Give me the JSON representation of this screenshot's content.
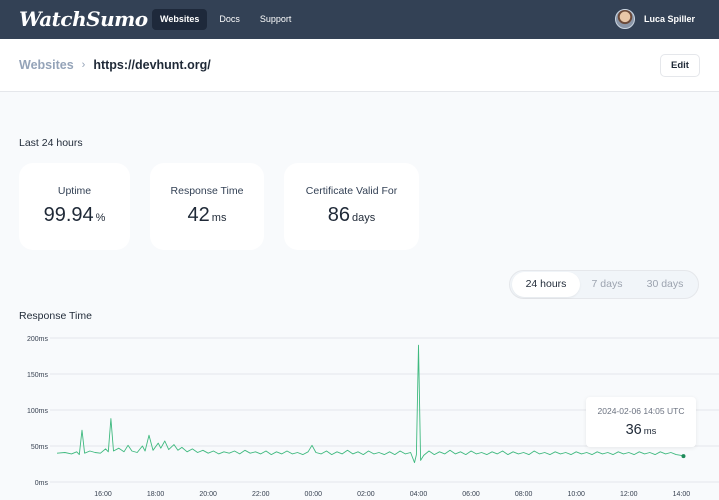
{
  "app": {
    "logo": "WatchSumo"
  },
  "nav": {
    "items": [
      {
        "label": "Websites",
        "active": true
      },
      {
        "label": "Docs"
      },
      {
        "label": "Support"
      }
    ]
  },
  "user": {
    "name": "Luca Spiller",
    "avatar_icon": "user-avatar"
  },
  "breadcrumb": {
    "parent": "Websites",
    "separator": "›",
    "current": "https://devhunt.org/"
  },
  "header": {
    "edit_label": "Edit"
  },
  "summary": {
    "label": "Last 24 hours",
    "uptime": {
      "title": "Uptime",
      "value": "99.94",
      "unit": "%"
    },
    "response_time": {
      "title": "Response Time",
      "value": "42",
      "unit": "ms"
    },
    "certificate": {
      "title": "Certificate Valid For",
      "value": "86",
      "unit": "days"
    }
  },
  "range": {
    "options": [
      "24 hours",
      "7 days",
      "30 days"
    ],
    "selected": "24 hours"
  },
  "chart_title": "Response Time",
  "tooltip": {
    "time": "2024-02-06 14:05 UTC",
    "value": "36",
    "unit": "ms"
  },
  "colors": {
    "topbar": "#334155",
    "accent": "#3fb97f",
    "grid": "#e5e7eb"
  },
  "chart_data": {
    "type": "line",
    "y_ticks": [
      "0ms",
      "50ms",
      "100ms",
      "150ms",
      "200ms"
    ],
    "ylim": [
      0,
      200
    ],
    "x_ticks": [
      "16:00",
      "18:00",
      "20:00",
      "22:00",
      "00:00",
      "02:00",
      "04:00",
      "06:00",
      "08:00",
      "10:00",
      "12:00",
      "14:00"
    ],
    "x_tick_hours": [
      16,
      18,
      20,
      22,
      24,
      26,
      28,
      30,
      32,
      34,
      36,
      38
    ],
    "xlim": [
      14.25,
      38.1
    ],
    "grid": true,
    "series": [
      {
        "points": [
          [
            14.25,
            40
          ],
          [
            14.55,
            41
          ],
          [
            14.8,
            39
          ],
          [
            15.0,
            42
          ],
          [
            15.1,
            38
          ],
          [
            15.2,
            72
          ],
          [
            15.3,
            40
          ],
          [
            15.5,
            43
          ],
          [
            15.7,
            41
          ],
          [
            15.9,
            40
          ],
          [
            16.1,
            46
          ],
          [
            16.2,
            42
          ],
          [
            16.3,
            88
          ],
          [
            16.4,
            43
          ],
          [
            16.6,
            47
          ],
          [
            16.8,
            42
          ],
          [
            16.95,
            51
          ],
          [
            17.1,
            43
          ],
          [
            17.3,
            41
          ],
          [
            17.5,
            50
          ],
          [
            17.6,
            43
          ],
          [
            17.75,
            65
          ],
          [
            17.9,
            44
          ],
          [
            18.1,
            54
          ],
          [
            18.2,
            47
          ],
          [
            18.35,
            57
          ],
          [
            18.5,
            45
          ],
          [
            18.7,
            52
          ],
          [
            18.85,
            44
          ],
          [
            19.0,
            48
          ],
          [
            19.2,
            42
          ],
          [
            19.4,
            46
          ],
          [
            19.6,
            41
          ],
          [
            19.8,
            44
          ],
          [
            20.0,
            40
          ],
          [
            20.2,
            43
          ],
          [
            20.4,
            39
          ],
          [
            20.6,
            42
          ],
          [
            20.8,
            40
          ],
          [
            21.0,
            43
          ],
          [
            21.2,
            39
          ],
          [
            21.4,
            44
          ],
          [
            21.6,
            40
          ],
          [
            21.8,
            42
          ],
          [
            22.0,
            39
          ],
          [
            22.2,
            43
          ],
          [
            22.4,
            38
          ],
          [
            22.6,
            42
          ],
          [
            22.8,
            39
          ],
          [
            23.0,
            43
          ],
          [
            23.2,
            39
          ],
          [
            23.4,
            41
          ],
          [
            23.6,
            38
          ],
          [
            23.8,
            42
          ],
          [
            23.95,
            51
          ],
          [
            24.1,
            41
          ],
          [
            24.3,
            39
          ],
          [
            24.5,
            43
          ],
          [
            24.7,
            38
          ],
          [
            24.9,
            42
          ],
          [
            25.1,
            39
          ],
          [
            25.3,
            44
          ],
          [
            25.5,
            39
          ],
          [
            25.7,
            42
          ],
          [
            25.9,
            38
          ],
          [
            26.1,
            43
          ],
          [
            26.3,
            39
          ],
          [
            26.5,
            41
          ],
          [
            26.7,
            38
          ],
          [
            26.9,
            42
          ],
          [
            27.1,
            38
          ],
          [
            27.3,
            43
          ],
          [
            27.5,
            39
          ],
          [
            27.7,
            41
          ],
          [
            27.85,
            27
          ],
          [
            27.92,
            38
          ],
          [
            28.0,
            190
          ],
          [
            28.08,
            30
          ],
          [
            28.2,
            37
          ],
          [
            28.4,
            43
          ],
          [
            28.6,
            38
          ],
          [
            28.8,
            42
          ],
          [
            29.0,
            39
          ],
          [
            29.2,
            44
          ],
          [
            29.4,
            39
          ],
          [
            29.6,
            42
          ],
          [
            29.8,
            38
          ],
          [
            30.0,
            43
          ],
          [
            30.2,
            39
          ],
          [
            30.4,
            41
          ],
          [
            30.6,
            38
          ],
          [
            30.8,
            42
          ],
          [
            31.0,
            39
          ],
          [
            31.2,
            43
          ],
          [
            31.4,
            38
          ],
          [
            31.6,
            42
          ],
          [
            31.8,
            39
          ],
          [
            32.0,
            41
          ],
          [
            32.2,
            38
          ],
          [
            32.4,
            43
          ],
          [
            32.6,
            39
          ],
          [
            32.8,
            41
          ],
          [
            33.0,
            38
          ],
          [
            33.2,
            42
          ],
          [
            33.4,
            39
          ],
          [
            33.6,
            41
          ],
          [
            33.8,
            38
          ],
          [
            34.0,
            42
          ],
          [
            34.2,
            39
          ],
          [
            34.4,
            41
          ],
          [
            34.6,
            38
          ],
          [
            34.8,
            42
          ],
          [
            35.0,
            39
          ],
          [
            35.2,
            41
          ],
          [
            35.4,
            38
          ],
          [
            35.6,
            42
          ],
          [
            35.8,
            39
          ],
          [
            36.0,
            41
          ],
          [
            36.2,
            38
          ],
          [
            36.4,
            42
          ],
          [
            36.6,
            39
          ],
          [
            36.8,
            41
          ],
          [
            37.0,
            38
          ],
          [
            37.2,
            42
          ],
          [
            37.4,
            39
          ],
          [
            37.6,
            41
          ],
          [
            37.8,
            38
          ],
          [
            38.0,
            37
          ],
          [
            38.08,
            36
          ]
        ]
      }
    ],
    "highlight": {
      "x": 38.08,
      "y": 36
    }
  }
}
